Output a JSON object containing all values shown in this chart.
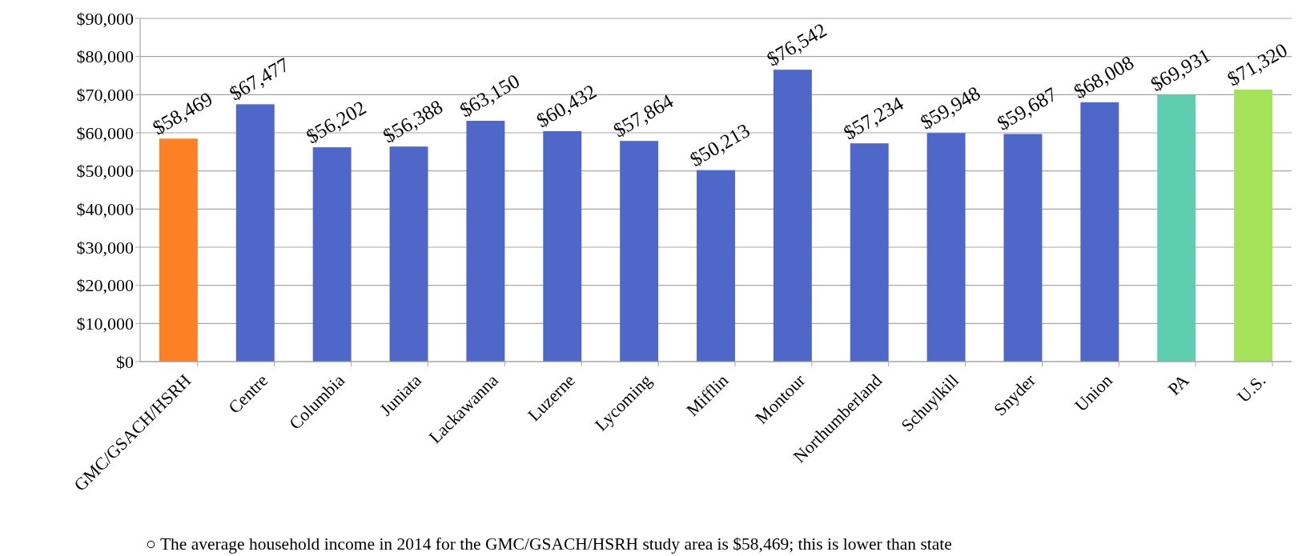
{
  "chart_data": {
    "type": "bar",
    "categories": [
      "GMC/GSACH/HSRH",
      "Centre",
      "Columbia",
      "Juniata",
      "Lackawanna",
      "Luzerne",
      "Lycoming",
      "Mifflin",
      "Montour",
      "Northumberland",
      "Schuylkill",
      "Snyder",
      "Union",
      "PA",
      "U.S."
    ],
    "values": [
      58469,
      67477,
      56202,
      56388,
      63150,
      60432,
      57864,
      50213,
      76542,
      57234,
      59948,
      59687,
      68008,
      69931,
      71320
    ],
    "colors": [
      "#fd8024",
      "#4f67c8",
      "#4f67c8",
      "#4f67c8",
      "#4f67c8",
      "#4f67c8",
      "#4f67c8",
      "#4f67c8",
      "#4f67c8",
      "#4f67c8",
      "#4f67c8",
      "#4f67c8",
      "#4f67c8",
      "#5fcdb0",
      "#a6e35a"
    ],
    "value_labels": [
      "$58,469",
      "$67,477",
      "$56,202",
      "$56,388",
      "$63,150",
      "$60,432",
      "$57,864",
      "$50,213",
      "$76,542",
      "$57,234",
      "$59,948",
      "$59,687",
      "$68,008",
      "$69,931",
      "$71,320"
    ],
    "ylim": [
      0,
      90000
    ],
    "yticks": [
      {
        "value": 0,
        "label": "$0"
      },
      {
        "value": 10000,
        "label": "$10,000"
      },
      {
        "value": 20000,
        "label": "$20,000"
      },
      {
        "value": 30000,
        "label": "$30,000"
      },
      {
        "value": 40000,
        "label": "$40,000"
      },
      {
        "value": 50000,
        "label": "$50,000"
      },
      {
        "value": 60000,
        "label": "$60,000"
      },
      {
        "value": 70000,
        "label": "$70,000"
      },
      {
        "value": 80000,
        "label": "$80,000"
      },
      {
        "value": 90000,
        "label": "$90,000"
      }
    ],
    "grid": "y",
    "annotations": [
      "○ The average household income in 2014 for the GMC/GSACH/HSRH study area is $58,469; this is lower than state"
    ]
  }
}
